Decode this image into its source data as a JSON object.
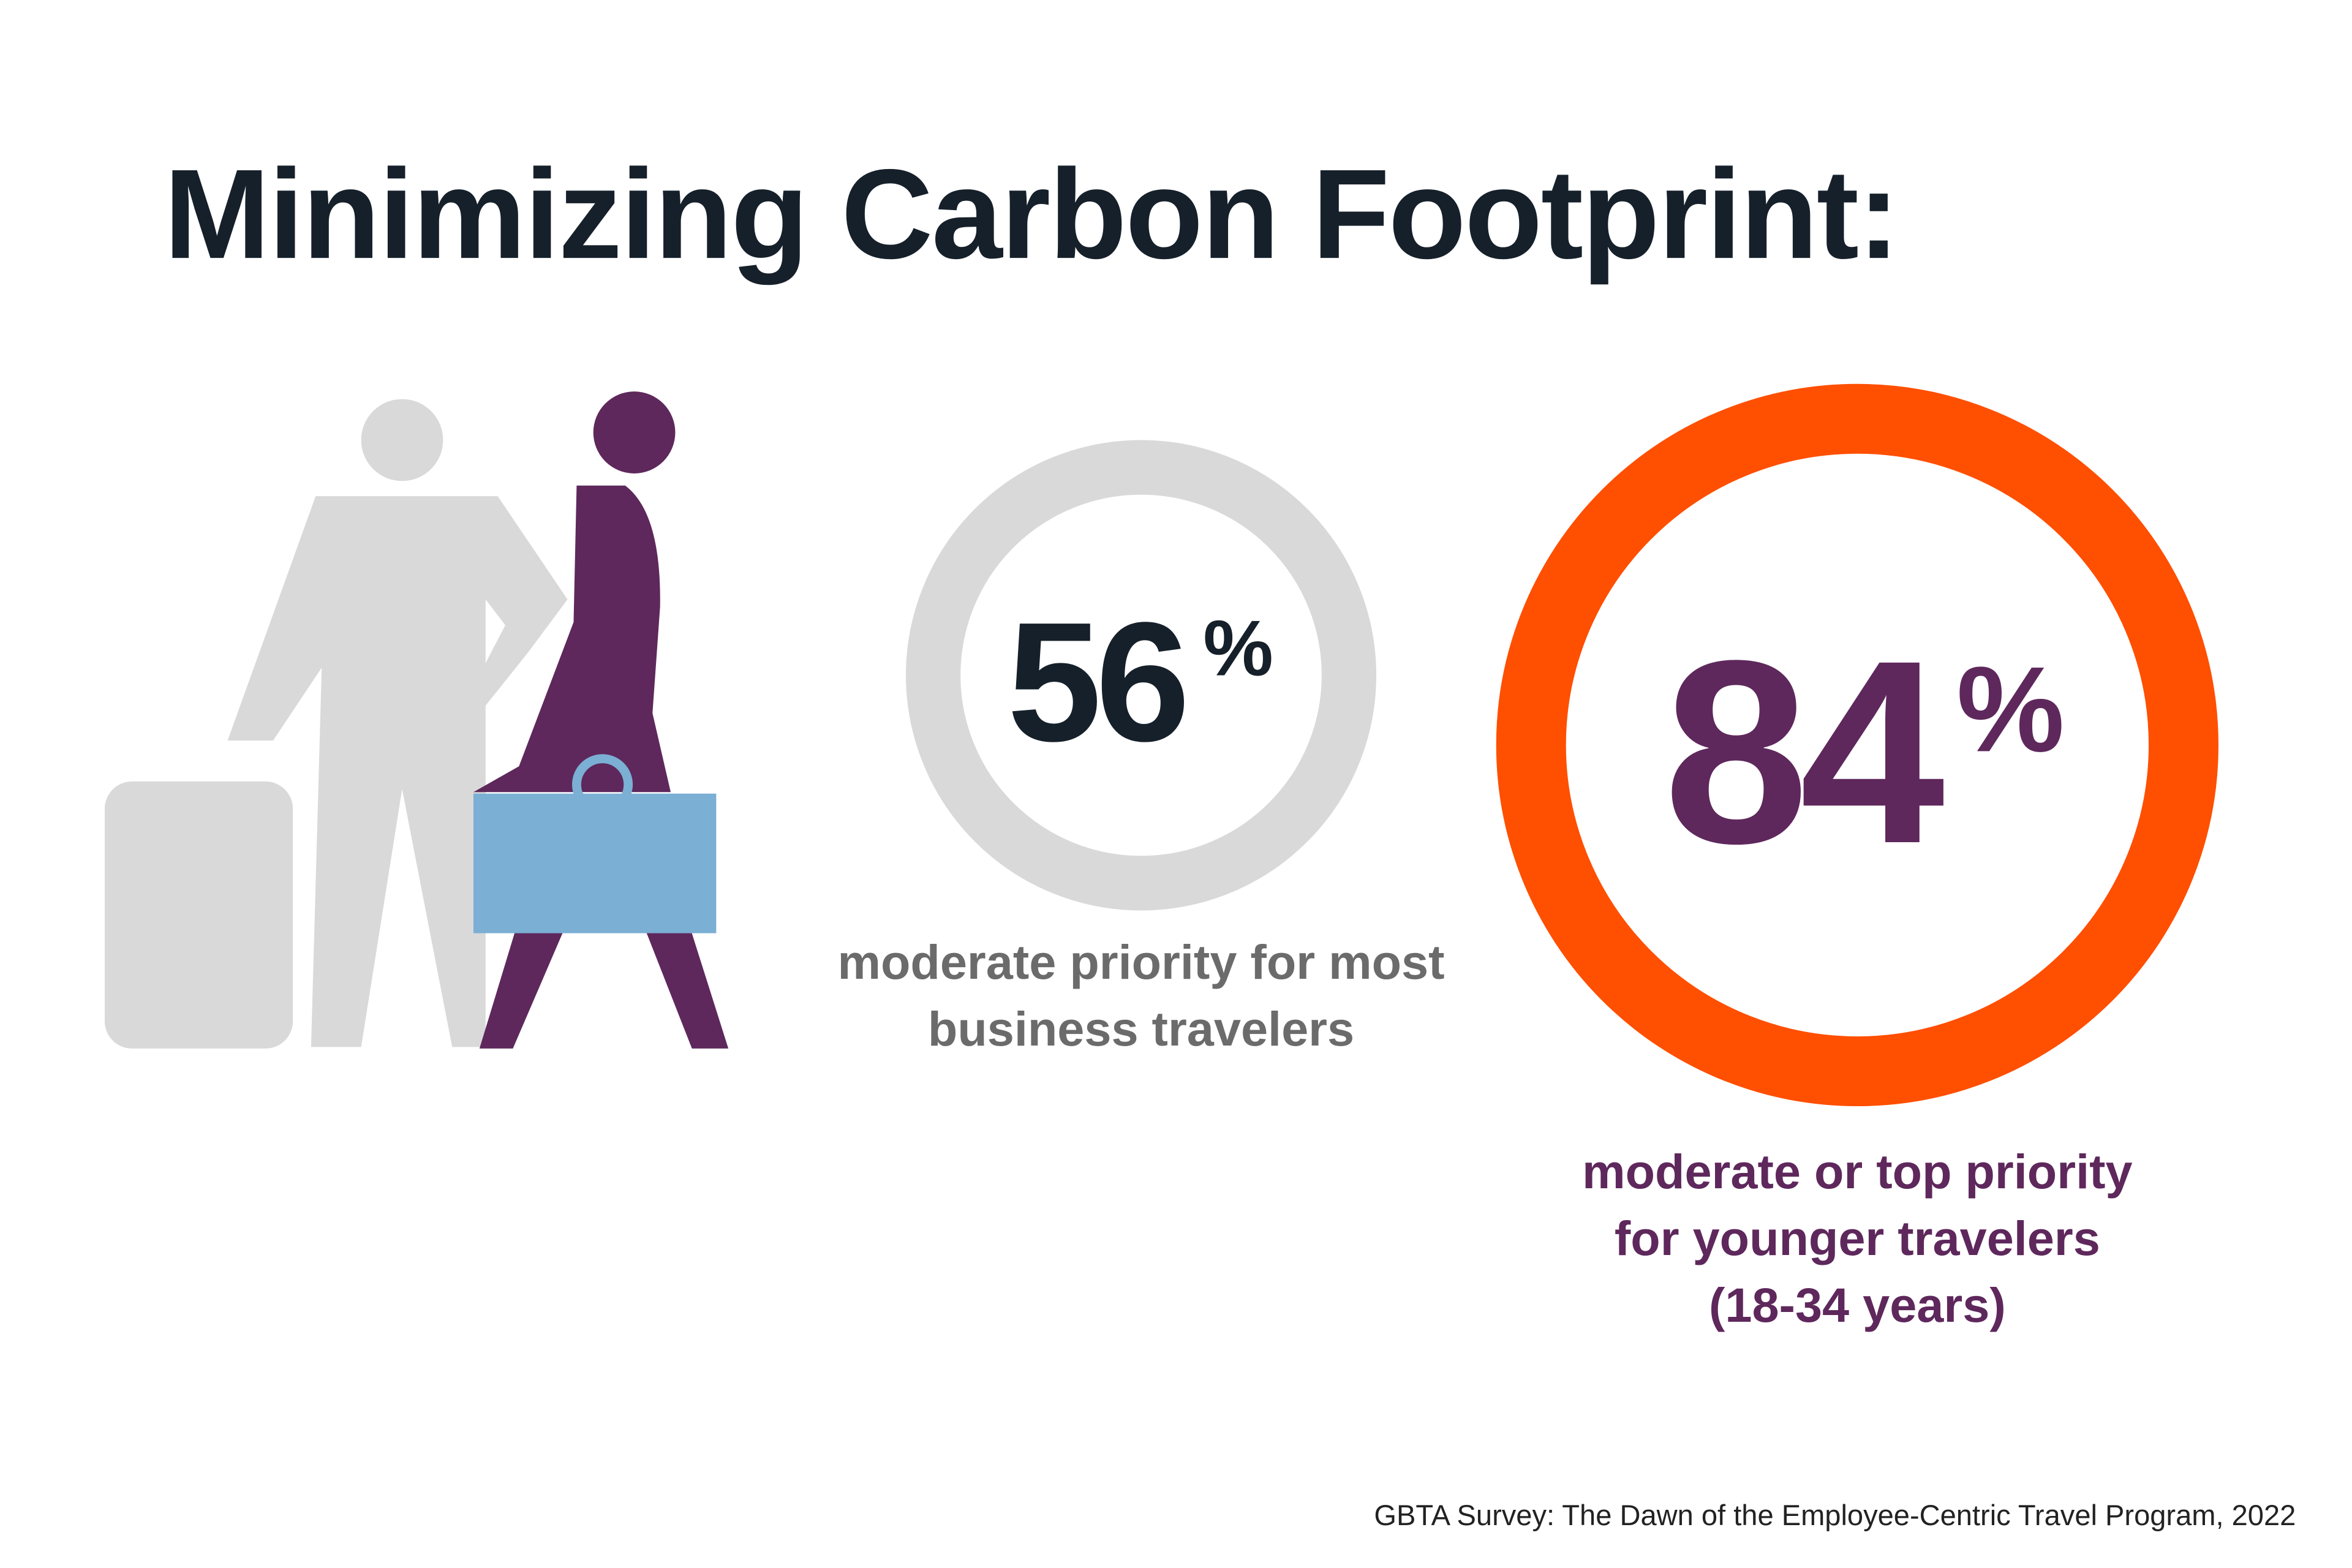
{
  "title": "Minimizing Carbon Footprint:",
  "stats": [
    {
      "number": "56",
      "unit": "%",
      "label_lines": [
        "moderate priority for most",
        "business travelers"
      ]
    },
    {
      "number": "84",
      "unit": "%",
      "label_lines": [
        "moderate or top priority",
        "for younger travelers",
        "(18-34 years)"
      ]
    }
  ],
  "source": "GBTA Survey: The Dawn of the Employee-Centric Travel Program, 2022"
}
